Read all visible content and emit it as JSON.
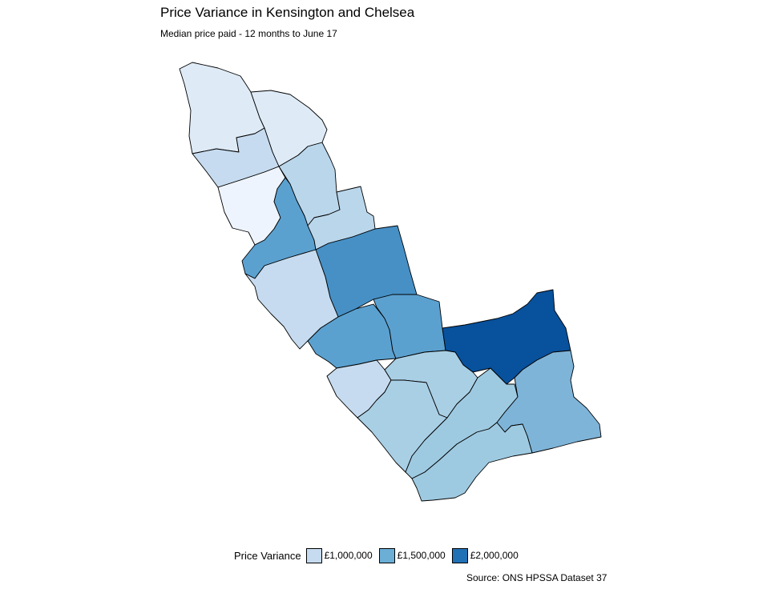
{
  "title": "Price Variance in Kensington and Chelsea",
  "subtitle": "Median price paid - 12 months to June 17",
  "source": "Source: ONS HPSSA Dataset 37",
  "legend": {
    "title": "Price Variance",
    "items": [
      {
        "label": "£1,000,000",
        "color": "#c6dbef"
      },
      {
        "label": "£1,500,000",
        "color": "#6baed6"
      },
      {
        "label": "£2,000,000",
        "color": "#2171b5"
      }
    ]
  },
  "map": {
    "fill_colors": [
      "#eef4fd",
      "#deebf7",
      "#c6dbef",
      "#bad6eb",
      "#a9cfe5",
      "#9ecae1",
      "#7fb4d9",
      "#5ba1d0",
      "#4690c6",
      "#08519c"
    ]
  }
}
